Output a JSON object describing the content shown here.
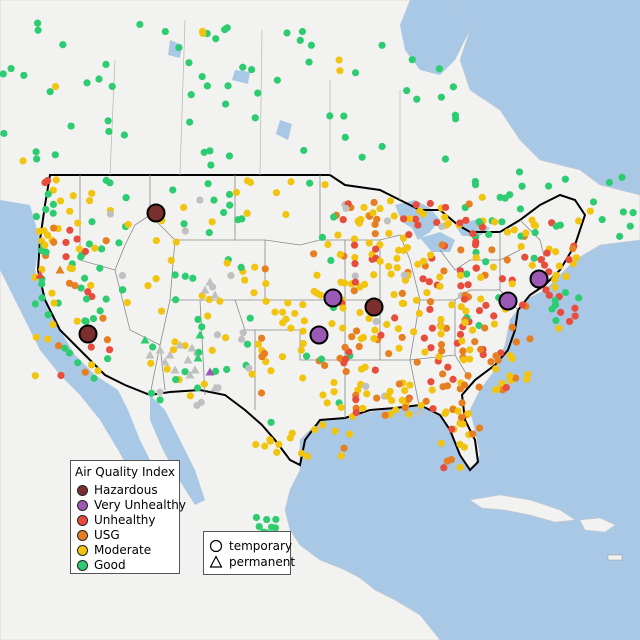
{
  "legend": {
    "title": "Air Quality Index",
    "categories": [
      {
        "label": "Hazardous",
        "color": "#7a2e2e"
      },
      {
        "label": "Very Unhealthy",
        "color": "#9b59b6"
      },
      {
        "label": "Unhealthy",
        "color": "#e74c3c"
      },
      {
        "label": "USG",
        "color": "#e67e22"
      },
      {
        "label": "Moderate",
        "color": "#f1c40f"
      },
      {
        "label": "Good",
        "color": "#2ecc71"
      }
    ]
  },
  "shape_legend": {
    "items": [
      {
        "label": "temporary",
        "shape": "circle"
      },
      {
        "label": "permanent",
        "shape": "triangle"
      }
    ]
  },
  "colors": {
    "ocean": "#a9c8e6",
    "land": "#f2f2f0",
    "border": "#000000",
    "nodata": "#c0c0c0"
  },
  "large_markers": [
    {
      "category": "Hazardous",
      "shape": "circle"
    },
    {
      "category": "Hazardous",
      "shape": "circle"
    },
    {
      "category": "Hazardous",
      "shape": "circle"
    },
    {
      "category": "Very Unhealthy",
      "shape": "circle"
    },
    {
      "category": "Very Unhealthy",
      "shape": "circle"
    },
    {
      "category": "Very Unhealthy",
      "shape": "circle"
    },
    {
      "category": "Very Unhealthy",
      "shape": "circle"
    }
  ]
}
